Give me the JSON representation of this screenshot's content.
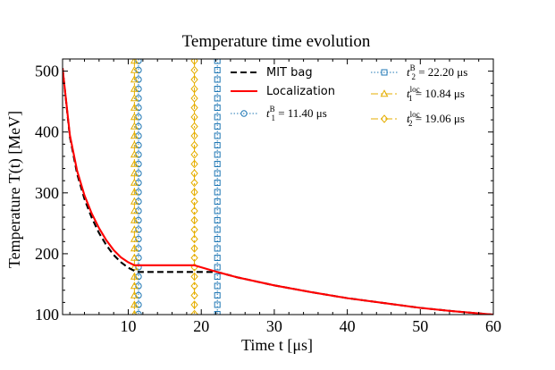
{
  "chart_data": {
    "type": "line",
    "title": "Temperature time evolution",
    "xlabel": "Time t [μs]",
    "ylabel": "Temperature T(t) [MeV]",
    "xlim": [
      1,
      60
    ],
    "ylim": [
      100,
      520
    ],
    "xticks": [
      10,
      20,
      30,
      40,
      50,
      60
    ],
    "yticks": [
      100,
      200,
      300,
      400,
      500
    ],
    "xtick_labels": [
      "10",
      "20",
      "30",
      "40",
      "50",
      "60"
    ],
    "ytick_labels": [
      "100",
      "200",
      "300",
      "400",
      "500"
    ],
    "legend_position": "top-right",
    "series": [
      {
        "name": "MIT bag",
        "style": "dashed",
        "color": "#000000",
        "x": [
          1,
          2,
          3,
          4,
          5,
          6,
          7,
          8,
          9,
          10,
          11,
          11.4,
          14,
          18,
          22.2,
          25,
          30,
          35,
          40,
          45,
          50,
          55,
          60
        ],
        "y": [
          505,
          392,
          331,
          290,
          259,
          234,
          214,
          198,
          186,
          177,
          171,
          170,
          170,
          170,
          170,
          161,
          148,
          137,
          127,
          119,
          111,
          105,
          100
        ]
      },
      {
        "name": "Localization",
        "style": "solid",
        "color": "#ff0000",
        "x": [
          1,
          2,
          3,
          4,
          5,
          6,
          7,
          8,
          9,
          10,
          10.84,
          14,
          19.06,
          22.2,
          25,
          30,
          35,
          40,
          45,
          50,
          55,
          60
        ],
        "y": [
          505,
          395,
          336,
          296,
          266,
          242,
          222,
          206,
          194,
          186,
          181,
          181,
          181,
          170,
          161,
          148,
          137,
          127,
          119,
          111,
          105,
          100
        ]
      }
    ],
    "vlines": [
      {
        "label_base": "t",
        "sup": "B",
        "sub": "1",
        "value_text": "= 11.40 μs",
        "x": 11.4,
        "color": "#1f77b4",
        "marker": "circle",
        "linestyle": "dotted"
      },
      {
        "label_base": "t",
        "sup": "B",
        "sub": "2",
        "value_text": "= 22.20 μs",
        "x": 22.2,
        "color": "#1f77b4",
        "marker": "square",
        "linestyle": "dotted"
      },
      {
        "label_base": "t",
        "sup": "loc",
        "sub": "1",
        "value_text": "= 10.84 μs",
        "x": 10.84,
        "color": "#e5ae00",
        "marker": "triangle",
        "linestyle": "dashdot"
      },
      {
        "label_base": "t",
        "sup": "loc",
        "sub": "2",
        "value_text": "= 19.06 μs",
        "x": 19.06,
        "color": "#e5ae00",
        "marker": "diamond",
        "linestyle": "dashdot"
      }
    ]
  }
}
